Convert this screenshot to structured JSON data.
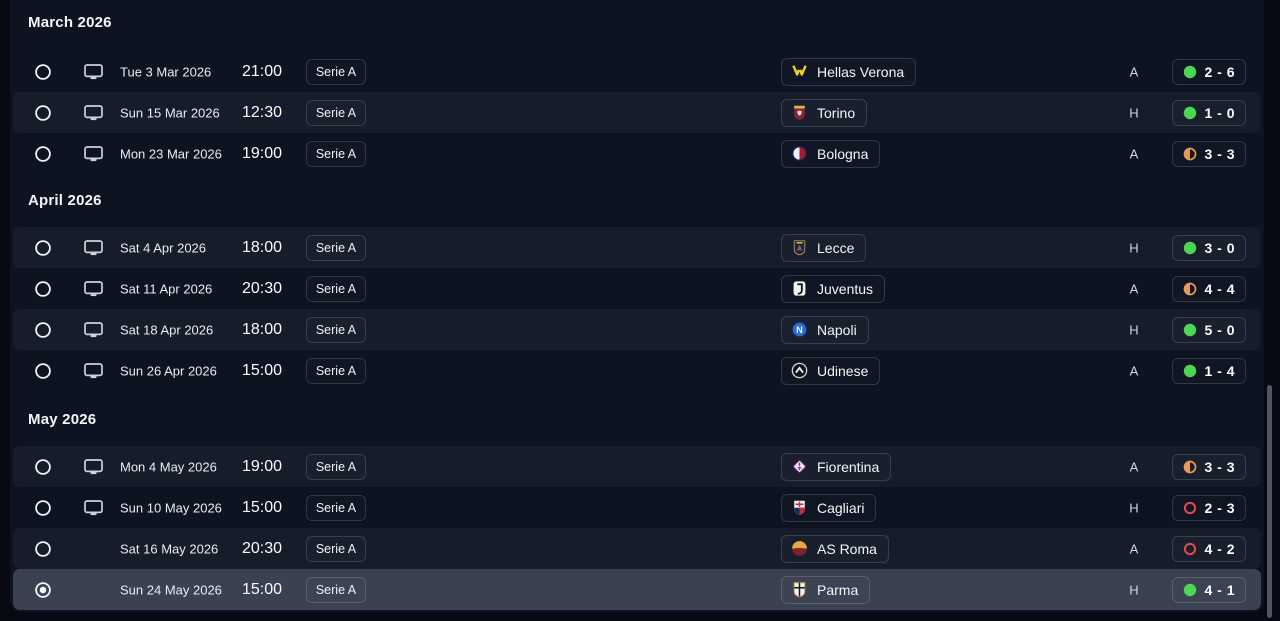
{
  "colors": {
    "win_green": "#4cd653",
    "draw_orange": "#e79a56",
    "loss_red": "#e5494f",
    "selected_row": "#3a4150"
  },
  "sections": [
    {
      "label": "March 2026",
      "rows": [
        {
          "date": "Tue 3 Mar 2026",
          "time": "21:00",
          "competition": "Serie A",
          "opponent": "Hellas Verona",
          "logo": "hellas-verona",
          "venue": "A",
          "score": "2 - 6",
          "result": "win",
          "televised": true,
          "selected": false
        },
        {
          "date": "Sun 15 Mar 2026",
          "time": "12:30",
          "competition": "Serie A",
          "opponent": "Torino",
          "logo": "torino",
          "venue": "H",
          "score": "1 - 0",
          "result": "win",
          "televised": true,
          "selected": false
        },
        {
          "date": "Mon 23 Mar 2026",
          "time": "19:00",
          "competition": "Serie A",
          "opponent": "Bologna",
          "logo": "bologna",
          "venue": "A",
          "score": "3 - 3",
          "result": "draw",
          "televised": true,
          "selected": false
        }
      ]
    },
    {
      "label": "April 2026",
      "rows": [
        {
          "date": "Sat 4 Apr 2026",
          "time": "18:00",
          "competition": "Serie A",
          "opponent": "Lecce",
          "logo": "lecce",
          "venue": "H",
          "score": "3 - 0",
          "result": "win",
          "televised": true,
          "selected": false
        },
        {
          "date": "Sat 11 Apr 2026",
          "time": "20:30",
          "competition": "Serie A",
          "opponent": "Juventus",
          "logo": "juventus",
          "venue": "A",
          "score": "4 - 4",
          "result": "draw",
          "televised": true,
          "selected": false
        },
        {
          "date": "Sat 18 Apr 2026",
          "time": "18:00",
          "competition": "Serie A",
          "opponent": "Napoli",
          "logo": "napoli",
          "venue": "H",
          "score": "5 - 0",
          "result": "win",
          "televised": true,
          "selected": false
        },
        {
          "date": "Sun 26 Apr 2026",
          "time": "15:00",
          "competition": "Serie A",
          "opponent": "Udinese",
          "logo": "udinese",
          "venue": "A",
          "score": "1 - 4",
          "result": "win",
          "televised": true,
          "selected": false
        }
      ]
    },
    {
      "label": "May 2026",
      "rows": [
        {
          "date": "Mon 4 May 2026",
          "time": "19:00",
          "competition": "Serie A",
          "opponent": "Fiorentina",
          "logo": "fiorentina",
          "venue": "A",
          "score": "3 - 3",
          "result": "draw",
          "televised": true,
          "selected": false
        },
        {
          "date": "Sun 10 May 2026",
          "time": "15:00",
          "competition": "Serie A",
          "opponent": "Cagliari",
          "logo": "cagliari",
          "venue": "H",
          "score": "2 - 3",
          "result": "loss",
          "televised": true,
          "selected": false
        },
        {
          "date": "Sat 16 May 2026",
          "time": "20:30",
          "competition": "Serie A",
          "opponent": "AS Roma",
          "logo": "as-roma",
          "venue": "A",
          "score": "4 - 2",
          "result": "loss",
          "televised": false,
          "selected": false
        },
        {
          "date": "Sun 24 May 2026",
          "time": "15:00",
          "competition": "Serie A",
          "opponent": "Parma",
          "logo": "parma",
          "venue": "H",
          "score": "4 - 1",
          "result": "win",
          "televised": false,
          "selected": true
        }
      ]
    }
  ]
}
